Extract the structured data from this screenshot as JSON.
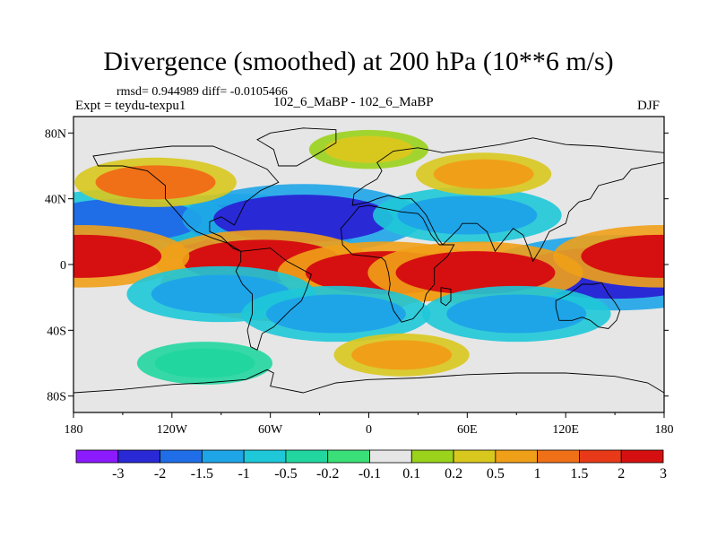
{
  "header": {
    "title": "Divergence (smoothed) at 200 hPa (10**6 m/s)",
    "stats": "rmsd= 0.944989 diff= -0.0105466",
    "experiment": "Expt = teydu-texpu1",
    "runs": "102_6_MaBP - 102_6_MaBP",
    "season": "DJF"
  },
  "chart_data": {
    "type": "heatmap",
    "title": "Divergence (smoothed) at 200 hPa (10**6 m/s)",
    "xlabel": "",
    "ylabel": "",
    "xlim": [
      -180,
      180
    ],
    "ylim": [
      -90,
      90
    ],
    "x_ticks": [
      {
        "value": -180,
        "label": "180"
      },
      {
        "value": -120,
        "label": "120W"
      },
      {
        "value": -60,
        "label": "60W"
      },
      {
        "value": 0,
        "label": "0"
      },
      {
        "value": 60,
        "label": "60E"
      },
      {
        "value": 120,
        "label": "120E"
      },
      {
        "value": 180,
        "label": "180"
      }
    ],
    "y_ticks": [
      {
        "value": 80,
        "label": "80N"
      },
      {
        "value": 40,
        "label": "40N"
      },
      {
        "value": 0,
        "label": "0"
      },
      {
        "value": -40,
        "label": "40S"
      },
      {
        "value": -80,
        "label": "80S"
      }
    ],
    "colorbar": {
      "levels": [
        "-3",
        "-2",
        "-1.5",
        "-1",
        "-0.5",
        "-0.2",
        "-0.1",
        "0.1",
        "0.2",
        "0.5",
        "1",
        "1.5",
        "2",
        "3"
      ],
      "colors": [
        "#8c1aff",
        "#2929d6",
        "#1f6ee8",
        "#1ea5e8",
        "#1ec8d8",
        "#22d6a0",
        "#3adf78",
        "#e6e6e6",
        "#9ad21c",
        "#d8c81e",
        "#f0a018",
        "#f07018",
        "#e83a18",
        "#d61010"
      ]
    },
    "features": [
      {
        "name": "subtropical-convergence-band-atlantic-africa",
        "lon": -80,
        "lat": 22,
        "value": -2.5
      },
      {
        "name": "pacific-convergence-north",
        "lon": -150,
        "lat": 27,
        "value": -2.0
      },
      {
        "name": "atlantic-convergence-north",
        "lon": -40,
        "lat": 28,
        "value": -2.5
      },
      {
        "name": "asia-convergence-band",
        "lon": 60,
        "lat": 30,
        "value": -1.5
      },
      {
        "name": "west-pacific-strong-convergence",
        "lon": 150,
        "lat": -5,
        "value": -3.0
      },
      {
        "name": "south-america-divergence",
        "lon": -45,
        "lat": -12,
        "value": 3.0
      },
      {
        "name": "equatorial-atlantic-divergence",
        "lon": -65,
        "lat": 2,
        "value": 2.0
      },
      {
        "name": "africa-divergence",
        "lon": 10,
        "lat": -5,
        "value": 2.0
      },
      {
        "name": "indian-ocean-divergence",
        "lon": 65,
        "lat": -5,
        "value": 2.0
      },
      {
        "name": "dateline-equatorial-divergence",
        "lon": -175,
        "lat": 5,
        "value": 2.0
      },
      {
        "name": "dateline-east-divergence",
        "lon": 178,
        "lat": 5,
        "value": 2.0
      },
      {
        "name": "north-pacific-divergence",
        "lon": -130,
        "lat": 50,
        "value": 1.0
      },
      {
        "name": "asia-midlat-divergence",
        "lon": 70,
        "lat": 55,
        "value": 0.5
      },
      {
        "name": "south-pacific-convergence",
        "lon": -90,
        "lat": -18,
        "value": -1.5
      },
      {
        "name": "indian-ocean-convergence",
        "lon": 90,
        "lat": -30,
        "value": -1.5
      },
      {
        "name": "south-atlantic-convergence",
        "lon": -20,
        "lat": -30,
        "value": -1.5
      },
      {
        "name": "southern-ocean-divergence",
        "lon": 20,
        "lat": -55,
        "value": 0.5
      },
      {
        "name": "southern-ocean-convergence",
        "lon": -100,
        "lat": -60,
        "value": -0.5
      },
      {
        "name": "arctic-band",
        "lon": 0,
        "lat": 70,
        "value": 0.2
      }
    ]
  }
}
